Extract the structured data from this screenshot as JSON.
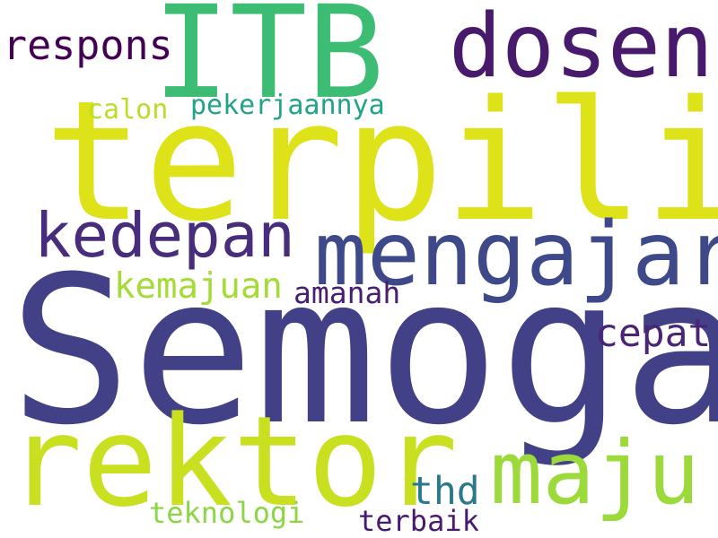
{
  "words": {
    "itb": {
      "text": "ITB",
      "color": "#3dbc74"
    },
    "dosen": {
      "text": "dosen",
      "color": "#481a6c"
    },
    "respons": {
      "text": "respons",
      "color": "#440154"
    },
    "calon": {
      "text": "calon",
      "color": "#b8de29"
    },
    "pekerjaannya": {
      "text": "pekerjaannya",
      "color": "#20a386"
    },
    "terpilih": {
      "text": "terpilih",
      "color": "#dde318"
    },
    "kedepan": {
      "text": "kedepan",
      "color": "#472d7b"
    },
    "mengajar": {
      "text": "mengajar",
      "color": "#3e4989"
    },
    "kemajuan": {
      "text": "kemajuan",
      "color": "#a5db36"
    },
    "amanah": {
      "text": "amanah",
      "color": "#481f70"
    },
    "cepat": {
      "text": "cepat",
      "color": "#482576"
    },
    "semoga": {
      "text": "Semoga",
      "color": "#424086"
    },
    "rektor": {
      "text": "rektor",
      "color": "#c8e020"
    },
    "maju": {
      "text": "maju",
      "color": "#9cd93b"
    },
    "thd": {
      "text": "thd",
      "color": "#2a788e"
    },
    "teknologi": {
      "text": "teknologi",
      "color": "#8bd646"
    },
    "terbaik": {
      "text": "terbaik",
      "color": "#481a6c"
    }
  }
}
